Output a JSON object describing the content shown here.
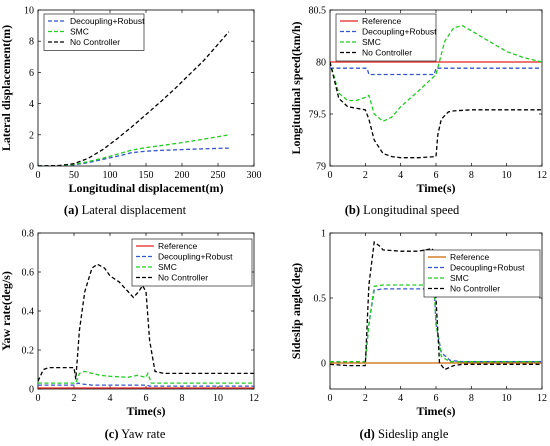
{
  "figure": {
    "captions": [
      {
        "letter": "(a)",
        "text": " Lateral displacement"
      },
      {
        "letter": "(b)",
        "text": " Longitudinal speed"
      },
      {
        "letter": "(c)",
        "text": " Yaw rate"
      },
      {
        "letter": "(d)",
        "text": " Sideslip angle"
      }
    ]
  },
  "chart_data": [
    {
      "type": "line",
      "xlabel": "Longitudinal displacement(m)",
      "ylabel": "Lateral displacement(m)",
      "xlim": [
        0,
        300
      ],
      "ylim": [
        0,
        10
      ],
      "xticks": [
        0,
        50,
        100,
        150,
        200,
        250,
        300
      ],
      "yticks": [
        0,
        2,
        4,
        6,
        8,
        10
      ],
      "legend_position": "top-left",
      "series": [
        {
          "name": "Decoupling+Robust",
          "color": "#3355cc",
          "dash": "dashed",
          "x": [
            0,
            30,
            50,
            70,
            90,
            110,
            130,
            150,
            170,
            200,
            230,
            265
          ],
          "y": [
            0,
            0.02,
            0.08,
            0.22,
            0.42,
            0.62,
            0.85,
            0.95,
            1.0,
            1.05,
            1.1,
            1.15
          ]
        },
        {
          "name": "SMC",
          "color": "#22cc22",
          "dash": "dashed",
          "x": [
            0,
            30,
            50,
            70,
            90,
            110,
            130,
            150,
            170,
            200,
            230,
            265
          ],
          "y": [
            0,
            0.02,
            0.1,
            0.28,
            0.5,
            0.75,
            1.02,
            1.18,
            1.3,
            1.5,
            1.72,
            2.0
          ]
        },
        {
          "name": "No Controller",
          "color": "#000000",
          "dash": "dashed",
          "x": [
            0,
            30,
            50,
            70,
            90,
            110,
            130,
            150,
            170,
            190,
            210,
            230,
            250,
            265
          ],
          "y": [
            0,
            0.03,
            0.15,
            0.5,
            1.05,
            1.75,
            2.5,
            3.3,
            4.1,
            4.95,
            5.85,
            6.75,
            7.8,
            8.6
          ]
        }
      ]
    },
    {
      "type": "line",
      "xlabel": "Time(s)",
      "ylabel": "Longitudinal speed(km/h)",
      "xlim": [
        0,
        12
      ],
      "ylim": [
        79,
        80.5
      ],
      "xticks": [
        0,
        2,
        4,
        6,
        8,
        10,
        12
      ],
      "yticks": [
        79,
        79.5,
        80,
        80.5
      ],
      "legend_position": "top-left",
      "series": [
        {
          "name": "Reference",
          "color": "#e52222",
          "dash": "solid",
          "x": [
            0,
            12
          ],
          "y": [
            80,
            80
          ]
        },
        {
          "name": "Decoupling+Robust",
          "color": "#3355cc",
          "dash": "dashed",
          "x": [
            0,
            2.1,
            2.2,
            5.9,
            6.0,
            12
          ],
          "y": [
            79.94,
            79.94,
            79.88,
            79.88,
            79.94,
            79.94
          ]
        },
        {
          "name": "SMC",
          "color": "#22cc22",
          "dash": "dashed",
          "x": [
            0,
            0.5,
            1,
            1.5,
            2,
            2.2,
            2.5,
            3,
            3.5,
            4,
            5,
            6,
            6.5,
            7,
            7.5,
            8,
            9,
            10,
            11,
            12
          ],
          "y": [
            80.0,
            79.7,
            79.63,
            79.63,
            79.66,
            79.68,
            79.5,
            79.43,
            79.47,
            79.57,
            79.72,
            79.88,
            80.2,
            80.33,
            80.35,
            80.3,
            80.2,
            80.1,
            80.04,
            80.0
          ]
        },
        {
          "name": "No Controller",
          "color": "#000000",
          "dash": "dashed",
          "x": [
            0,
            0.5,
            1,
            2,
            2.2,
            2.5,
            3,
            3.5,
            4,
            5,
            6,
            6.1,
            6.3,
            6.7,
            7,
            8,
            10,
            12
          ],
          "y": [
            80.0,
            79.65,
            79.57,
            79.54,
            79.45,
            79.25,
            79.12,
            79.09,
            79.08,
            79.08,
            79.09,
            79.3,
            79.45,
            79.52,
            79.53,
            79.54,
            79.54,
            79.54
          ]
        }
      ]
    },
    {
      "type": "line",
      "xlabel": "Time(s)",
      "ylabel": "Yaw rate(deg/s)",
      "xlim": [
        0,
        12
      ],
      "ylim": [
        0,
        0.8
      ],
      "xticks": [
        0,
        2,
        4,
        6,
        8,
        10,
        12
      ],
      "yticks": [
        0,
        0.2,
        0.4,
        0.6,
        0.8
      ],
      "legend_position": "top-right",
      "series": [
        {
          "name": "Reference",
          "color": "#e52222",
          "dash": "solid",
          "x": [
            0,
            12
          ],
          "y": [
            0.005,
            0.005
          ]
        },
        {
          "name": "Decoupling+Robust",
          "color": "#3355cc",
          "dash": "dashed",
          "x": [
            0,
            2.1,
            2.2,
            2.5,
            3,
            4,
            5,
            6,
            6.2,
            12
          ],
          "y": [
            0.02,
            0.02,
            0.03,
            0.025,
            0.02,
            0.02,
            0.02,
            0.02,
            0.015,
            0.015
          ]
        },
        {
          "name": "SMC",
          "color": "#22cc22",
          "dash": "dashed",
          "x": [
            0,
            2.1,
            2.3,
            2.6,
            3,
            3.5,
            4,
            5,
            5.5,
            6,
            6.1,
            6.3,
            12
          ],
          "y": [
            0.03,
            0.03,
            0.08,
            0.09,
            0.08,
            0.07,
            0.065,
            0.06,
            0.07,
            0.06,
            0.08,
            0.03,
            0.03
          ]
        },
        {
          "name": "No Controller",
          "color": "#000000",
          "dash": "dashed",
          "x": [
            0,
            0.3,
            0.6,
            1,
            2,
            2.1,
            2.3,
            2.6,
            3,
            3.3,
            3.7,
            4,
            4.5,
            5,
            5.3,
            5.6,
            5.8,
            6,
            6.2,
            6.5,
            7,
            12
          ],
          "y": [
            0.04,
            0.1,
            0.11,
            0.11,
            0.11,
            0.05,
            0.3,
            0.5,
            0.62,
            0.64,
            0.62,
            0.58,
            0.55,
            0.5,
            0.47,
            0.5,
            0.53,
            0.5,
            0.25,
            0.09,
            0.08,
            0.08
          ]
        }
      ]
    },
    {
      "type": "line",
      "xlabel": "Time(s)",
      "ylabel": "Sideslip angle(deg)",
      "xlim": [
        0,
        12
      ],
      "ylim": [
        -0.2,
        1
      ],
      "xticks": [
        0,
        2,
        4,
        6,
        8,
        10,
        12
      ],
      "yticks": [
        0,
        0.5,
        1
      ],
      "legend_position": "top-right",
      "series": [
        {
          "name": "Reference",
          "color": "#cc6600",
          "dash": "solid",
          "x": [
            0,
            12
          ],
          "y": [
            0,
            0
          ]
        },
        {
          "name": "Decoupling+Robust",
          "color": "#3355cc",
          "dash": "dashed",
          "x": [
            0,
            2.0,
            2.2,
            2.5,
            3,
            4,
            5,
            5.9,
            6.0,
            6.3,
            6.8,
            7.5,
            12
          ],
          "y": [
            0.01,
            0.01,
            0.3,
            0.56,
            0.57,
            0.57,
            0.57,
            0.57,
            0.3,
            0.08,
            0.02,
            0.01,
            0.01
          ]
        },
        {
          "name": "SMC",
          "color": "#22cc22",
          "dash": "dashed",
          "x": [
            0,
            2.0,
            2.2,
            2.5,
            3,
            4,
            5,
            5.9,
            6.0,
            6.3,
            6.8,
            7.5,
            12
          ],
          "y": [
            0.01,
            0.01,
            0.3,
            0.59,
            0.6,
            0.6,
            0.6,
            0.6,
            0.3,
            0.05,
            0.01,
            0.01,
            0.01
          ]
        },
        {
          "name": "No Controller",
          "color": "#000000",
          "dash": "dashed",
          "x": [
            0,
            1,
            2.0,
            2.2,
            2.5,
            2.8,
            3,
            4,
            5,
            5.8,
            6,
            6.2,
            6.5,
            7,
            7.5,
            12
          ],
          "y": [
            -0.01,
            -0.02,
            -0.02,
            0.6,
            0.93,
            0.9,
            0.87,
            0.86,
            0.86,
            0.88,
            0.5,
            0.0,
            -0.05,
            -0.02,
            -0.01,
            -0.01
          ]
        }
      ]
    }
  ]
}
